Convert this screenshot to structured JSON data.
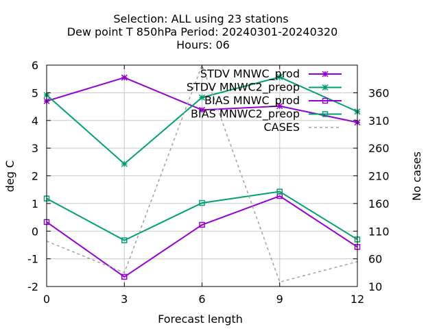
{
  "chart_data": {
    "type": "line",
    "title_lines": [
      "Selection: ALL using    23 stations",
      "Dew point T 850hPa   Period: 20240301-20240320",
      "Hours:  06"
    ],
    "xlabel": "Forecast length",
    "ylabel": "deg C",
    "y2label": "No cases",
    "x": [
      0,
      3,
      6,
      9,
      12
    ],
    "xlim": [
      0,
      12
    ],
    "ylim": [
      -2,
      6
    ],
    "y2lim": [
      10,
      410
    ],
    "x_ticks": [
      "0",
      "3",
      "6",
      "9",
      "12"
    ],
    "y_ticks": [
      "-2",
      "-1",
      "0",
      "1",
      "2",
      "3",
      "4",
      "5",
      "6"
    ],
    "y2_ticks": [
      "10",
      "60",
      "110",
      "160",
      "210",
      "260",
      "310",
      "360"
    ],
    "grid": true,
    "legend_position": "top-right",
    "series": [
      {
        "name": "STDV MNWC_prod",
        "axis": "y",
        "marker": "x-star",
        "color": "#9400d3",
        "values": [
          4.7,
          5.55,
          4.38,
          4.52,
          3.93
        ]
      },
      {
        "name": "STDV MNWC2_preop",
        "axis": "y",
        "marker": "x-star",
        "color": "#009e73",
        "values": [
          4.92,
          2.43,
          4.83,
          5.57,
          4.32
        ]
      },
      {
        "name": "BIAS MNWC_prod",
        "axis": "y",
        "marker": "square",
        "color": "#9400d3",
        "values": [
          0.33,
          -1.65,
          0.23,
          1.27,
          -0.57
        ]
      },
      {
        "name": "BIAS MNWC2_preop",
        "axis": "y",
        "marker": "square",
        "color": "#009e73",
        "values": [
          1.18,
          -0.33,
          1.02,
          1.43,
          -0.3
        ]
      },
      {
        "name": "CASES",
        "axis": "y2",
        "marker": "none",
        "color": "#a0a0a0",
        "dashed": true,
        "values": [
          92,
          35,
          410,
          18,
          55
        ]
      }
    ]
  }
}
